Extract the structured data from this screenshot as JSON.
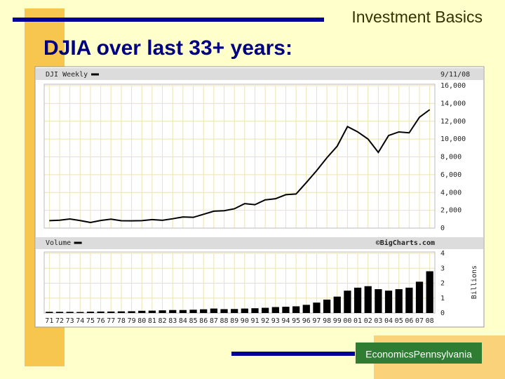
{
  "slide": {
    "header": "Investment Basics",
    "title": "DJIA over last 33+ years:",
    "logo": "EconomicsPennsylvania"
  },
  "chart_data": [
    {
      "type": "line",
      "date": "9/11/08",
      "series": [
        {
          "name": "DJI Weekly",
          "color": "#000000",
          "values": [
            840,
            890,
            1020,
            850,
            630,
            860,
            1000,
            830,
            820,
            840,
            960,
            880,
            1050,
            1250,
            1210,
            1550,
            1900,
            1950,
            2170,
            2750,
            2630,
            3170,
            3300,
            3750,
            3830,
            5120,
            6450,
            7900,
            9200,
            11400,
            10800,
            10000,
            8500,
            10400,
            10800,
            10700,
            12450,
            13300
          ]
        }
      ],
      "ylim": [
        0,
        16000
      ],
      "yticks": [
        0,
        {
          "value": 2000,
          "label": "2,000"
        },
        {
          "value": 4000,
          "label": "4,000"
        },
        {
          "value": 6000,
          "label": "6,000"
        },
        {
          "value": 8000,
          "label": "8,000"
        },
        {
          "value": 10000,
          "label": "10,000"
        },
        {
          "value": 12000,
          "label": "12,000"
        },
        {
          "value": 14000,
          "label": "14,000"
        },
        {
          "value": 16000,
          "label": "16,000"
        }
      ],
      "grid": true
    },
    {
      "type": "bar",
      "y_label": "Billions",
      "source": "©BigCharts.com",
      "categories": [
        "71",
        "72",
        "73",
        "74",
        "75",
        "76",
        "77",
        "78",
        "79",
        "80",
        "81",
        "82",
        "83",
        "84",
        "85",
        "86",
        "87",
        "88",
        "89",
        "90",
        "91",
        "92",
        "93",
        "94",
        "95",
        "96",
        "97",
        "98",
        "99",
        "00",
        "01",
        "02",
        "03",
        "04",
        "05",
        "06",
        "07",
        "08"
      ],
      "series": [
        {
          "name": "Volume",
          "color": "#000000",
          "values": [
            0.08,
            0.08,
            0.08,
            0.07,
            0.09,
            0.1,
            0.1,
            0.11,
            0.12,
            0.15,
            0.16,
            0.18,
            0.2,
            0.2,
            0.22,
            0.25,
            0.3,
            0.26,
            0.27,
            0.3,
            0.32,
            0.35,
            0.4,
            0.42,
            0.45,
            0.55,
            0.7,
            0.9,
            1.1,
            1.5,
            1.7,
            1.8,
            1.6,
            1.5,
            1.6,
            1.7,
            2.1,
            2.8
          ]
        }
      ],
      "ylim": [
        0,
        4
      ],
      "yticks": [
        0,
        1,
        2,
        3,
        4
      ],
      "grid": true
    }
  ]
}
